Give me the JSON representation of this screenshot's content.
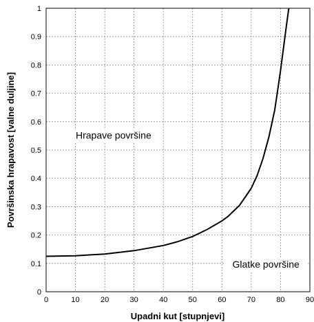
{
  "chart_data": {
    "type": "line",
    "xlabel": "Upadni kut [stupnjevi]",
    "ylabel": "Površinska hrapavost [valne duljine]",
    "xlim": [
      0,
      90
    ],
    "ylim": [
      0,
      1
    ],
    "x_ticks": [
      "0",
      "10",
      "20",
      "30",
      "40",
      "50",
      "60",
      "70",
      "80",
      "90"
    ],
    "y_ticks": [
      "0",
      "0.1",
      "0.2",
      "0.3",
      "0.4",
      "0.5",
      "0.6",
      "0.7",
      "0.8",
      "0.9",
      "1"
    ],
    "grid": true,
    "series": [
      {
        "x": [
          0,
          10,
          20,
          30,
          40,
          45,
          50,
          55,
          60,
          62,
          64,
          66,
          68,
          70,
          72,
          74,
          76,
          78,
          79,
          80,
          81,
          82,
          82.8
        ],
        "y": [
          0.125,
          0.127,
          0.133,
          0.145,
          0.163,
          0.177,
          0.195,
          0.22,
          0.25,
          0.265,
          0.285,
          0.305,
          0.335,
          0.365,
          0.41,
          0.47,
          0.545,
          0.64,
          0.71,
          0.78,
          0.86,
          0.94,
          1.0
        ]
      }
    ],
    "annotations": [
      {
        "text": "Hrapave površine",
        "x": 23,
        "y": 0.54
      },
      {
        "text": "Glatke površine",
        "x": 75,
        "y": 0.085
      }
    ]
  }
}
